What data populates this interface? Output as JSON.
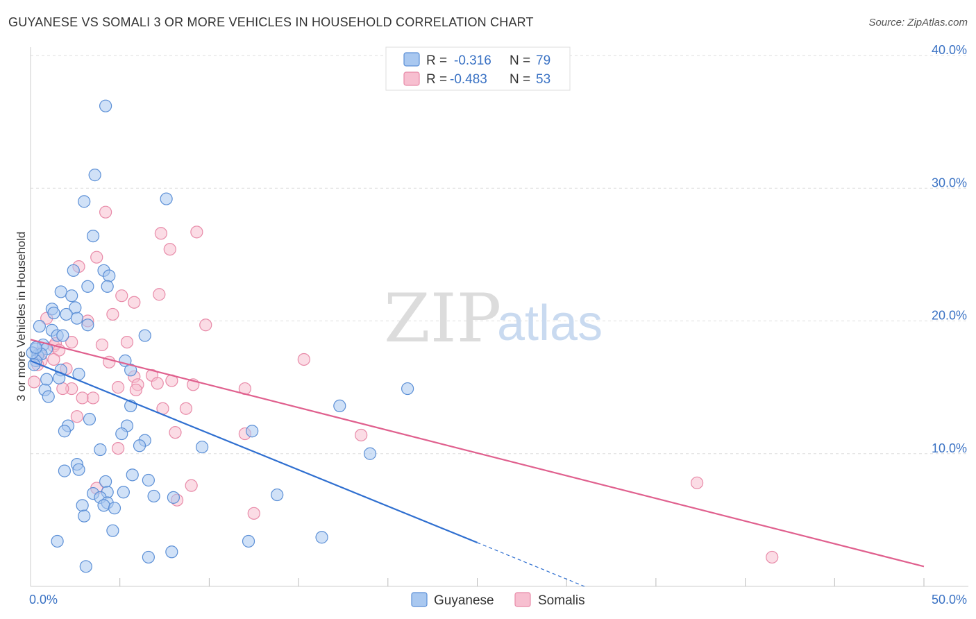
{
  "header": {
    "title": "GUYANESE VS SOMALI 3 OR MORE VEHICLES IN HOUSEHOLD CORRELATION CHART",
    "source": "Source: ZipAtlas.com"
  },
  "watermark": {
    "zip": "ZIP",
    "atlas": "atlas"
  },
  "legend": {
    "rows": [
      {
        "r_label": "R =",
        "r_value": "-0.316",
        "n_label": "N =",
        "n_value": "79"
      },
      {
        "r_label": "R =",
        "r_value": "-0.483",
        "n_label": "N =",
        "n_value": "53"
      }
    ]
  },
  "colors": {
    "guyanese_fill": "#a9c8f0",
    "guyanese_stroke": "#5b8fd6",
    "guyanese_line": "#2f6fd0",
    "somalis_fill": "#f7bfd0",
    "somalis_stroke": "#e88aa8",
    "somalis_line": "#e0608e",
    "axis_text": "#3a72c4",
    "grid": "#dddddd"
  },
  "chart_data": {
    "type": "scatter",
    "title": "GUYANESE VS SOMALI 3 OR MORE VEHICLES IN HOUSEHOLD CORRELATION CHART",
    "xlabel": "",
    "ylabel": "3 or more Vehicles in Household",
    "xlim": [
      0,
      50
    ],
    "ylim": [
      0,
      40
    ],
    "x_tick_labels": [
      "0.0%",
      "50.0%"
    ],
    "y_ticks": [
      10,
      20,
      30,
      40
    ],
    "y_tick_labels": [
      "10.0%",
      "20.0%",
      "30.0%",
      "40.0%"
    ],
    "grid": true,
    "series": [
      {
        "name": "Guyanese",
        "r": -0.316,
        "n": 79,
        "trend": {
          "x0": 0,
          "y0": 17.0,
          "x1": 25,
          "y1": 3.3,
          "dashed_to_x": 31,
          "dashed_to_y": 0
        },
        "points": [
          [
            4.2,
            36.2
          ],
          [
            3.6,
            31.0
          ],
          [
            3.0,
            29.0
          ],
          [
            7.6,
            29.2
          ],
          [
            3.5,
            26.4
          ],
          [
            2.4,
            23.8
          ],
          [
            4.1,
            23.8
          ],
          [
            4.4,
            23.4
          ],
          [
            3.2,
            22.6
          ],
          [
            1.7,
            22.2
          ],
          [
            4.3,
            22.6
          ],
          [
            2.3,
            21.9
          ],
          [
            1.2,
            20.9
          ],
          [
            2.5,
            21.0
          ],
          [
            1.3,
            20.6
          ],
          [
            2.0,
            20.5
          ],
          [
            2.6,
            20.2
          ],
          [
            3.2,
            19.7
          ],
          [
            0.5,
            19.6
          ],
          [
            1.2,
            19.3
          ],
          [
            1.5,
            18.9
          ],
          [
            1.8,
            18.9
          ],
          [
            6.4,
            18.9
          ],
          [
            0.7,
            18.2
          ],
          [
            0.9,
            17.9
          ],
          [
            0.3,
            17.9
          ],
          [
            0.4,
            17.4
          ],
          [
            0.6,
            17.5
          ],
          [
            0.3,
            17.0
          ],
          [
            0.2,
            16.7
          ],
          [
            5.3,
            17.0
          ],
          [
            1.7,
            16.3
          ],
          [
            5.6,
            16.3
          ],
          [
            2.7,
            16.0
          ],
          [
            1.6,
            15.7
          ],
          [
            0.9,
            15.6
          ],
          [
            0.8,
            14.8
          ],
          [
            1.0,
            14.3
          ],
          [
            21.1,
            14.9
          ],
          [
            17.3,
            13.6
          ],
          [
            5.6,
            13.6
          ],
          [
            3.3,
            12.6
          ],
          [
            2.1,
            12.1
          ],
          [
            5.4,
            12.1
          ],
          [
            1.9,
            11.7
          ],
          [
            12.4,
            11.7
          ],
          [
            5.1,
            11.5
          ],
          [
            6.4,
            11.0
          ],
          [
            6.1,
            10.6
          ],
          [
            3.9,
            10.3
          ],
          [
            9.6,
            10.5
          ],
          [
            19.0,
            10.0
          ],
          [
            2.6,
            9.2
          ],
          [
            2.7,
            8.8
          ],
          [
            1.9,
            8.7
          ],
          [
            5.7,
            8.4
          ],
          [
            6.6,
            8.0
          ],
          [
            4.2,
            7.9
          ],
          [
            4.3,
            7.1
          ],
          [
            5.2,
            7.1
          ],
          [
            3.5,
            7.0
          ],
          [
            13.8,
            6.9
          ],
          [
            6.9,
            6.8
          ],
          [
            8.0,
            6.7
          ],
          [
            3.9,
            6.7
          ],
          [
            4.3,
            6.3
          ],
          [
            2.9,
            6.1
          ],
          [
            4.1,
            6.1
          ],
          [
            4.7,
            5.9
          ],
          [
            3.0,
            5.3
          ],
          [
            4.6,
            4.2
          ],
          [
            1.5,
            3.4
          ],
          [
            12.2,
            3.4
          ],
          [
            16.3,
            3.7
          ],
          [
            7.9,
            2.6
          ],
          [
            6.6,
            2.2
          ],
          [
            3.1,
            1.5
          ],
          [
            0.1,
            17.6
          ],
          [
            0.3,
            18.0
          ]
        ]
      },
      {
        "name": "Somalis",
        "r": -0.483,
        "n": 53,
        "trend": {
          "x0": 0,
          "y0": 18.6,
          "x1": 50,
          "y1": 1.5
        },
        "points": [
          [
            4.2,
            28.2
          ],
          [
            9.3,
            26.7
          ],
          [
            7.3,
            26.6
          ],
          [
            7.8,
            25.4
          ],
          [
            3.7,
            24.8
          ],
          [
            2.7,
            24.1
          ],
          [
            7.2,
            22.0
          ],
          [
            5.1,
            21.9
          ],
          [
            5.8,
            21.4
          ],
          [
            3.2,
            20.0
          ],
          [
            4.6,
            20.5
          ],
          [
            9.8,
            19.7
          ],
          [
            0.9,
            20.2
          ],
          [
            2.3,
            18.4
          ],
          [
            5.4,
            18.4
          ],
          [
            4.0,
            18.2
          ],
          [
            1.3,
            18.1
          ],
          [
            1.4,
            18.3
          ],
          [
            0.5,
            17.6
          ],
          [
            1.6,
            17.8
          ],
          [
            0.6,
            17.0
          ],
          [
            1.3,
            17.1
          ],
          [
            15.3,
            17.1
          ],
          [
            4.4,
            16.9
          ],
          [
            2.0,
            16.4
          ],
          [
            5.8,
            15.8
          ],
          [
            6.8,
            15.9
          ],
          [
            7.9,
            15.5
          ],
          [
            7.1,
            15.3
          ],
          [
            9.1,
            15.2
          ],
          [
            6.0,
            15.2
          ],
          [
            2.3,
            14.9
          ],
          [
            1.8,
            14.9
          ],
          [
            12.0,
            14.9
          ],
          [
            5.9,
            14.8
          ],
          [
            4.9,
            15.0
          ],
          [
            2.9,
            14.2
          ],
          [
            3.5,
            14.2
          ],
          [
            7.4,
            13.4
          ],
          [
            8.7,
            13.4
          ],
          [
            2.6,
            12.8
          ],
          [
            8.1,
            11.6
          ],
          [
            12.0,
            11.5
          ],
          [
            18.5,
            11.4
          ],
          [
            4.9,
            10.4
          ],
          [
            0.2,
            15.4
          ],
          [
            37.3,
            7.8
          ],
          [
            9.0,
            7.6
          ],
          [
            3.7,
            7.4
          ],
          [
            8.2,
            6.5
          ],
          [
            12.5,
            5.5
          ],
          [
            41.5,
            2.2
          ],
          [
            0.4,
            16.7
          ]
        ]
      }
    ],
    "legend_entries": [
      "Guyanese",
      "Somalis"
    ]
  }
}
